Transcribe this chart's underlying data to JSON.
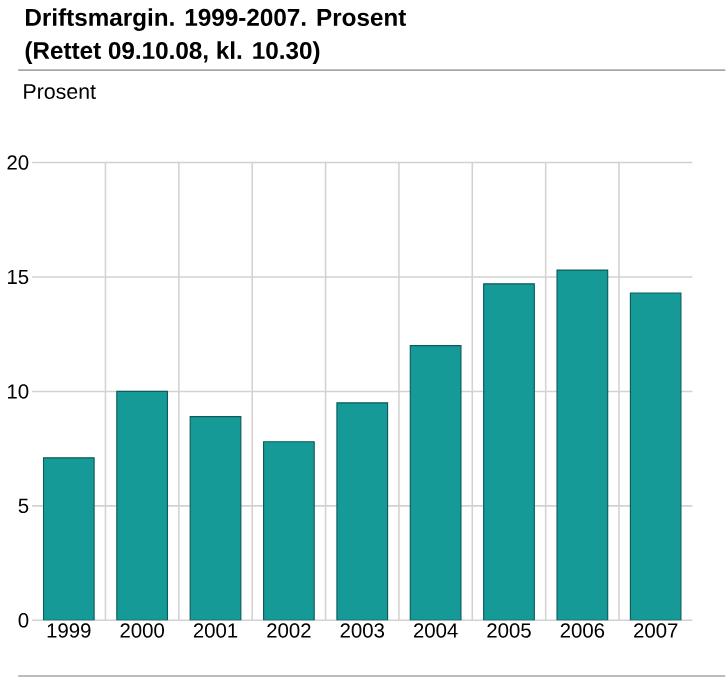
{
  "chart_data": {
    "type": "bar",
    "title": "Driftsmargin. 1999-2007. Prosent",
    "subtitle": "(Rettet 09.10.08, kl. 10.30)",
    "ylabel": "Prosent",
    "categories": [
      "1999",
      "2000",
      "2001",
      "2002",
      "2003",
      "2004",
      "2005",
      "2006",
      "2007"
    ],
    "values": [
      7.1,
      10.0,
      8.9,
      7.8,
      9.5,
      12.0,
      14.7,
      15.3,
      14.3
    ],
    "color": "#159a98",
    "ylim": [
      0,
      20
    ],
    "yticks": [
      0,
      5,
      10,
      15,
      20
    ],
    "grid": true
  }
}
